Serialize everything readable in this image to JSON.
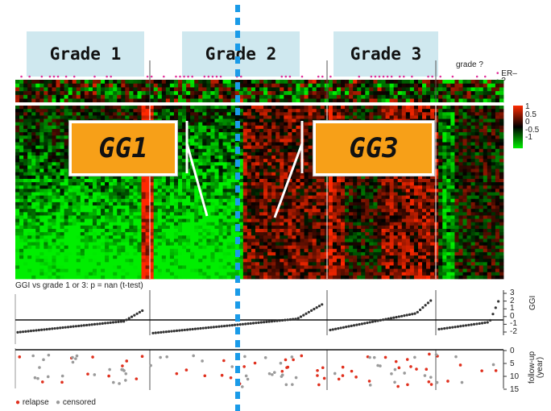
{
  "grades": [
    "Grade 1",
    "Grade 2",
    "Grade 3"
  ],
  "grade_unknown_label": "grade ?",
  "er_legend": [
    "ER–",
    "?"
  ],
  "color_scale": {
    "ticks": [
      "1",
      "0.5",
      "0",
      "-0.5",
      "-1"
    ],
    "colors": [
      "#ff2a00",
      "#000000",
      "#00ee00"
    ]
  },
  "clusters": [
    "GG1",
    "GG3"
  ],
  "ggi_title": "GGI vs grade 1 or 3: p = nan (t-test)",
  "ggi_axis": {
    "label": "GGI",
    "ticks": [
      "3",
      "2",
      "1",
      "0",
      "-1",
      "-2"
    ]
  },
  "followup_axis": {
    "label": "follow-up (year)",
    "ticks": [
      "0",
      "5",
      "10",
      "15"
    ]
  },
  "legend": {
    "relapse": "relapse",
    "censored": "censored"
  },
  "colors": {
    "relapse": "#e0301e",
    "censored": "#9a9a9a",
    "grade_box": "#cfe8ef",
    "gg_box": "#f7a018",
    "divider": "#1a9be8"
  }
}
